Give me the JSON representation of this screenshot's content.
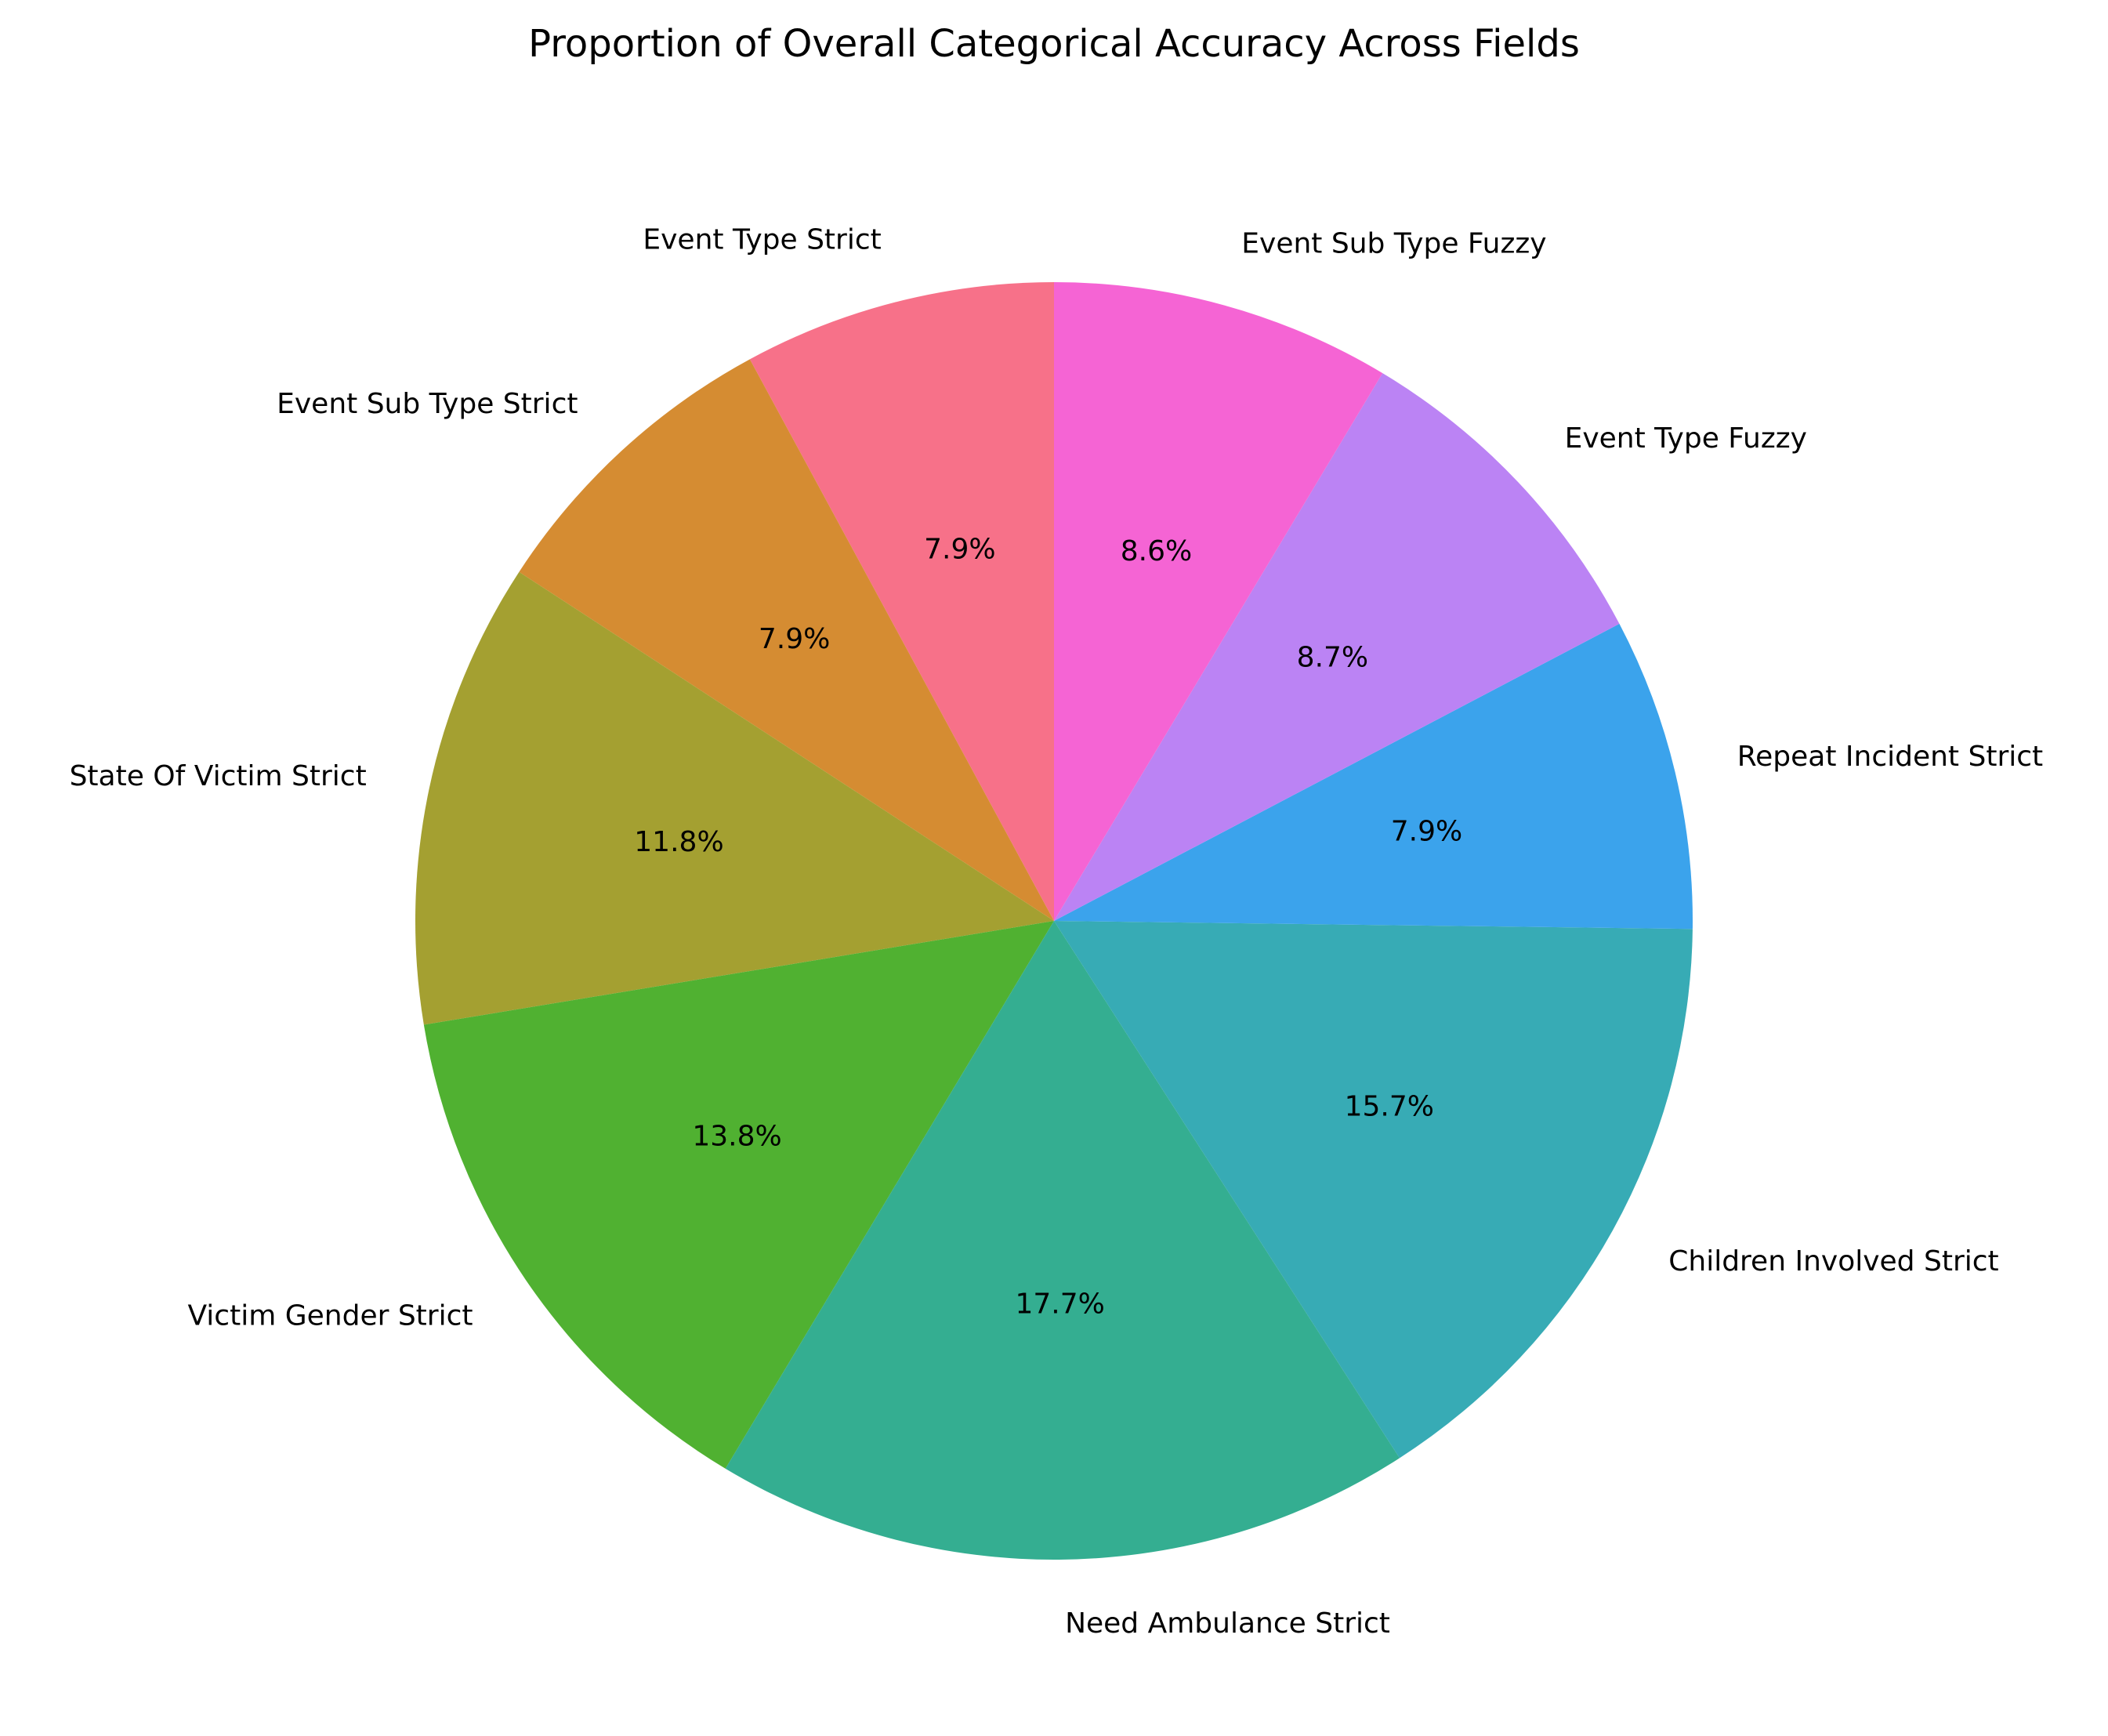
{
  "chart_data": {
    "type": "pie",
    "title": "Proportion of Overall Categorical Accuracy Across Fields",
    "start_angle_deg": 90,
    "direction": "counterclockwise",
    "slices": [
      {
        "label": "Event Type Strict",
        "value": 7.9,
        "pct_label": "7.9%",
        "color": "#f77189"
      },
      {
        "label": "Event Sub Type Strict",
        "value": 7.9,
        "pct_label": "7.9%",
        "color": "#d58c32"
      },
      {
        "label": "State Of Victim Strict",
        "value": 11.8,
        "pct_label": "11.8%",
        "color": "#a4a031"
      },
      {
        "label": "Victim Gender Strict",
        "value": 13.8,
        "pct_label": "13.8%",
        "color": "#50b131"
      },
      {
        "label": "Need Ambulance Strict",
        "value": 17.7,
        "pct_label": "17.7%",
        "color": "#34ae91"
      },
      {
        "label": "Children Involved Strict",
        "value": 15.7,
        "pct_label": "15.7%",
        "color": "#37abb5"
      },
      {
        "label": "Repeat Incident Strict",
        "value": 7.9,
        "pct_label": "7.9%",
        "color": "#3ba3ec"
      },
      {
        "label": "Event Type Fuzzy",
        "value": 8.7,
        "pct_label": "8.7%",
        "color": "#bb83f4"
      },
      {
        "label": "Event Sub Type Fuzzy",
        "value": 8.6,
        "pct_label": "8.6%",
        "color": "#f564d4"
      }
    ]
  }
}
